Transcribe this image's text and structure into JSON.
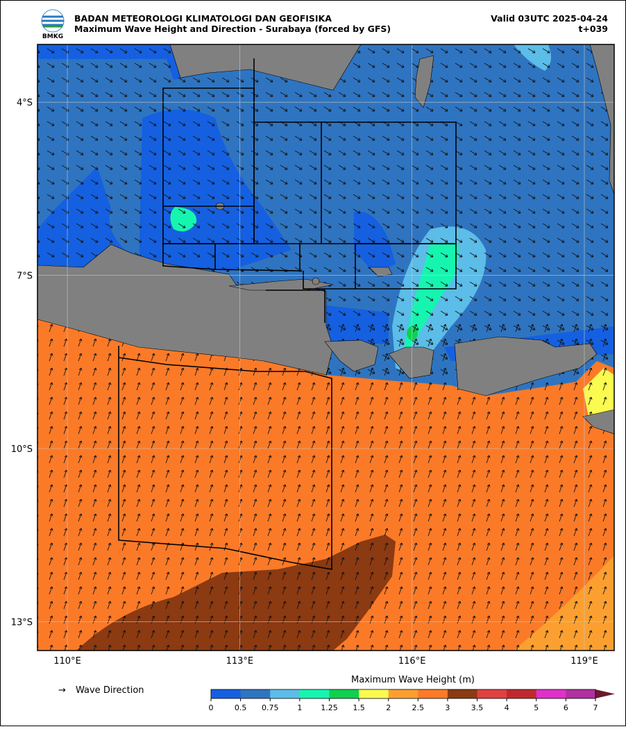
{
  "header": {
    "logo_text": "BMKG",
    "title": "BADAN METEOROLOGI KLIMATOLOGI DAN GEOFISIKA",
    "subtitle": "Maximum Wave Height and Direction - Surabaya (forced by GFS)",
    "valid": "Valid 03UTC 2025-04-24",
    "step": "t+039"
  },
  "map": {
    "lat_ticks": [
      {
        "value": -4,
        "label": "4°S"
      },
      {
        "value": -7,
        "label": "7°S"
      },
      {
        "value": -10,
        "label": "10°S"
      },
      {
        "value": -13,
        "label": "13°S"
      }
    ],
    "lon_ticks": [
      {
        "value": 110,
        "label": "110°E"
      },
      {
        "value": 113,
        "label": "113°E"
      },
      {
        "value": 116,
        "label": "116°E"
      },
      {
        "value": 119,
        "label": "119°E"
      }
    ],
    "lonlim": [
      109.48,
      119.52
    ],
    "latlim": [
      -3,
      -13.5
    ]
  },
  "legend": {
    "arrow": "→",
    "label": "Wave Direction"
  },
  "colorbar": {
    "title": "Maximum Wave Height (m)",
    "ticks": [
      0,
      0.5,
      0.75,
      1,
      1.25,
      1.5,
      2,
      2.5,
      3,
      3.5,
      4,
      5,
      6,
      7
    ],
    "colors": [
      "#1560e0",
      "#2f74c0",
      "#5bbde8",
      "#16f5b0",
      "#10d050",
      "#fafa50",
      "#fba030",
      "#fb7a28",
      "#8b3a12",
      "#e04040",
      "#c02830",
      "#e030c8",
      "#b030a0"
    ],
    "extend_color": "#6a1a30"
  }
}
